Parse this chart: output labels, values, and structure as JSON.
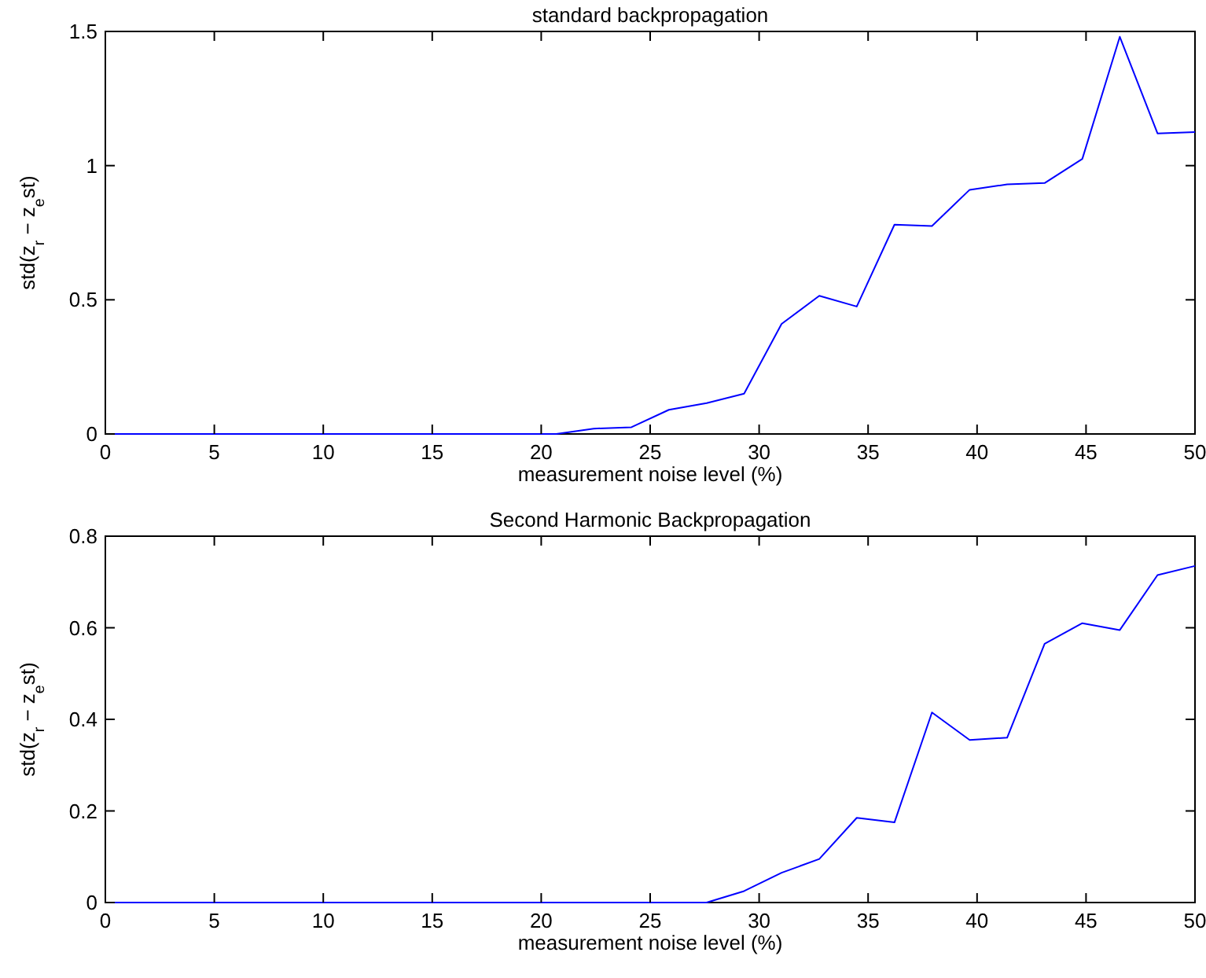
{
  "chart_data": [
    {
      "type": "line",
      "title": "standard backpropagation",
      "xlabel": "measurement noise level (%)",
      "ylabel": "std(z$_{r}$ − z$_{e}$st)",
      "x": [
        0,
        1.72,
        3.45,
        5.17,
        6.9,
        8.62,
        10.34,
        12.07,
        13.79,
        15.52,
        17.24,
        18.97,
        20.69,
        22.41,
        24.14,
        25.86,
        27.59,
        29.31,
        31.03,
        32.76,
        34.48,
        36.21,
        37.93,
        39.66,
        41.38,
        43.1,
        44.83,
        46.55,
        48.28,
        50
      ],
      "series": [
        {
          "color": "#0000ff",
          "values": [
            0,
            0,
            0,
            0,
            0,
            0,
            0,
            0,
            0,
            0,
            0,
            0,
            0,
            0.02,
            0.025,
            0.09,
            0.115,
            0.15,
            0.41,
            0.515,
            0.475,
            0.78,
            0.775,
            0.91,
            0.93,
            0.935,
            1.025,
            1.48,
            1.12,
            1.125
          ]
        }
      ],
      "xlim": [
        0,
        50
      ],
      "xticks": [
        0,
        5,
        10,
        15,
        20,
        25,
        30,
        35,
        40,
        45,
        50
      ],
      "ylim": [
        0,
        1.5
      ],
      "yticks": [
        0,
        0.5,
        1,
        1.5
      ],
      "grid": false
    },
    {
      "type": "line",
      "title": "Second Harmonic Backpropagation",
      "xlabel": "measurement noise level (%)",
      "ylabel": "std(z$_{r}$ − z$_{e}$st)",
      "x": [
        0,
        1.72,
        3.45,
        5.17,
        6.9,
        8.62,
        10.34,
        12.07,
        13.79,
        15.52,
        17.24,
        18.97,
        20.69,
        22.41,
        24.14,
        25.86,
        27.59,
        29.31,
        31.03,
        32.76,
        34.48,
        36.21,
        37.93,
        39.66,
        41.38,
        43.1,
        44.83,
        46.55,
        48.28,
        50
      ],
      "series": [
        {
          "color": "#0000ff",
          "values": [
            0,
            0,
            0,
            0,
            0,
            0,
            0,
            0,
            0,
            0,
            0,
            0,
            0,
            0,
            0,
            0,
            0,
            0.025,
            0.065,
            0.095,
            0.185,
            0.175,
            0.415,
            0.355,
            0.36,
            0.565,
            0.61,
            0.595,
            0.715,
            0.735
          ]
        }
      ],
      "xlim": [
        0,
        50
      ],
      "xticks": [
        0,
        5,
        10,
        15,
        20,
        25,
        30,
        35,
        40,
        45,
        50
      ],
      "ylim": [
        0,
        0.8
      ],
      "yticks": [
        0,
        0.2,
        0.4,
        0.6,
        0.8
      ],
      "grid": false
    }
  ]
}
